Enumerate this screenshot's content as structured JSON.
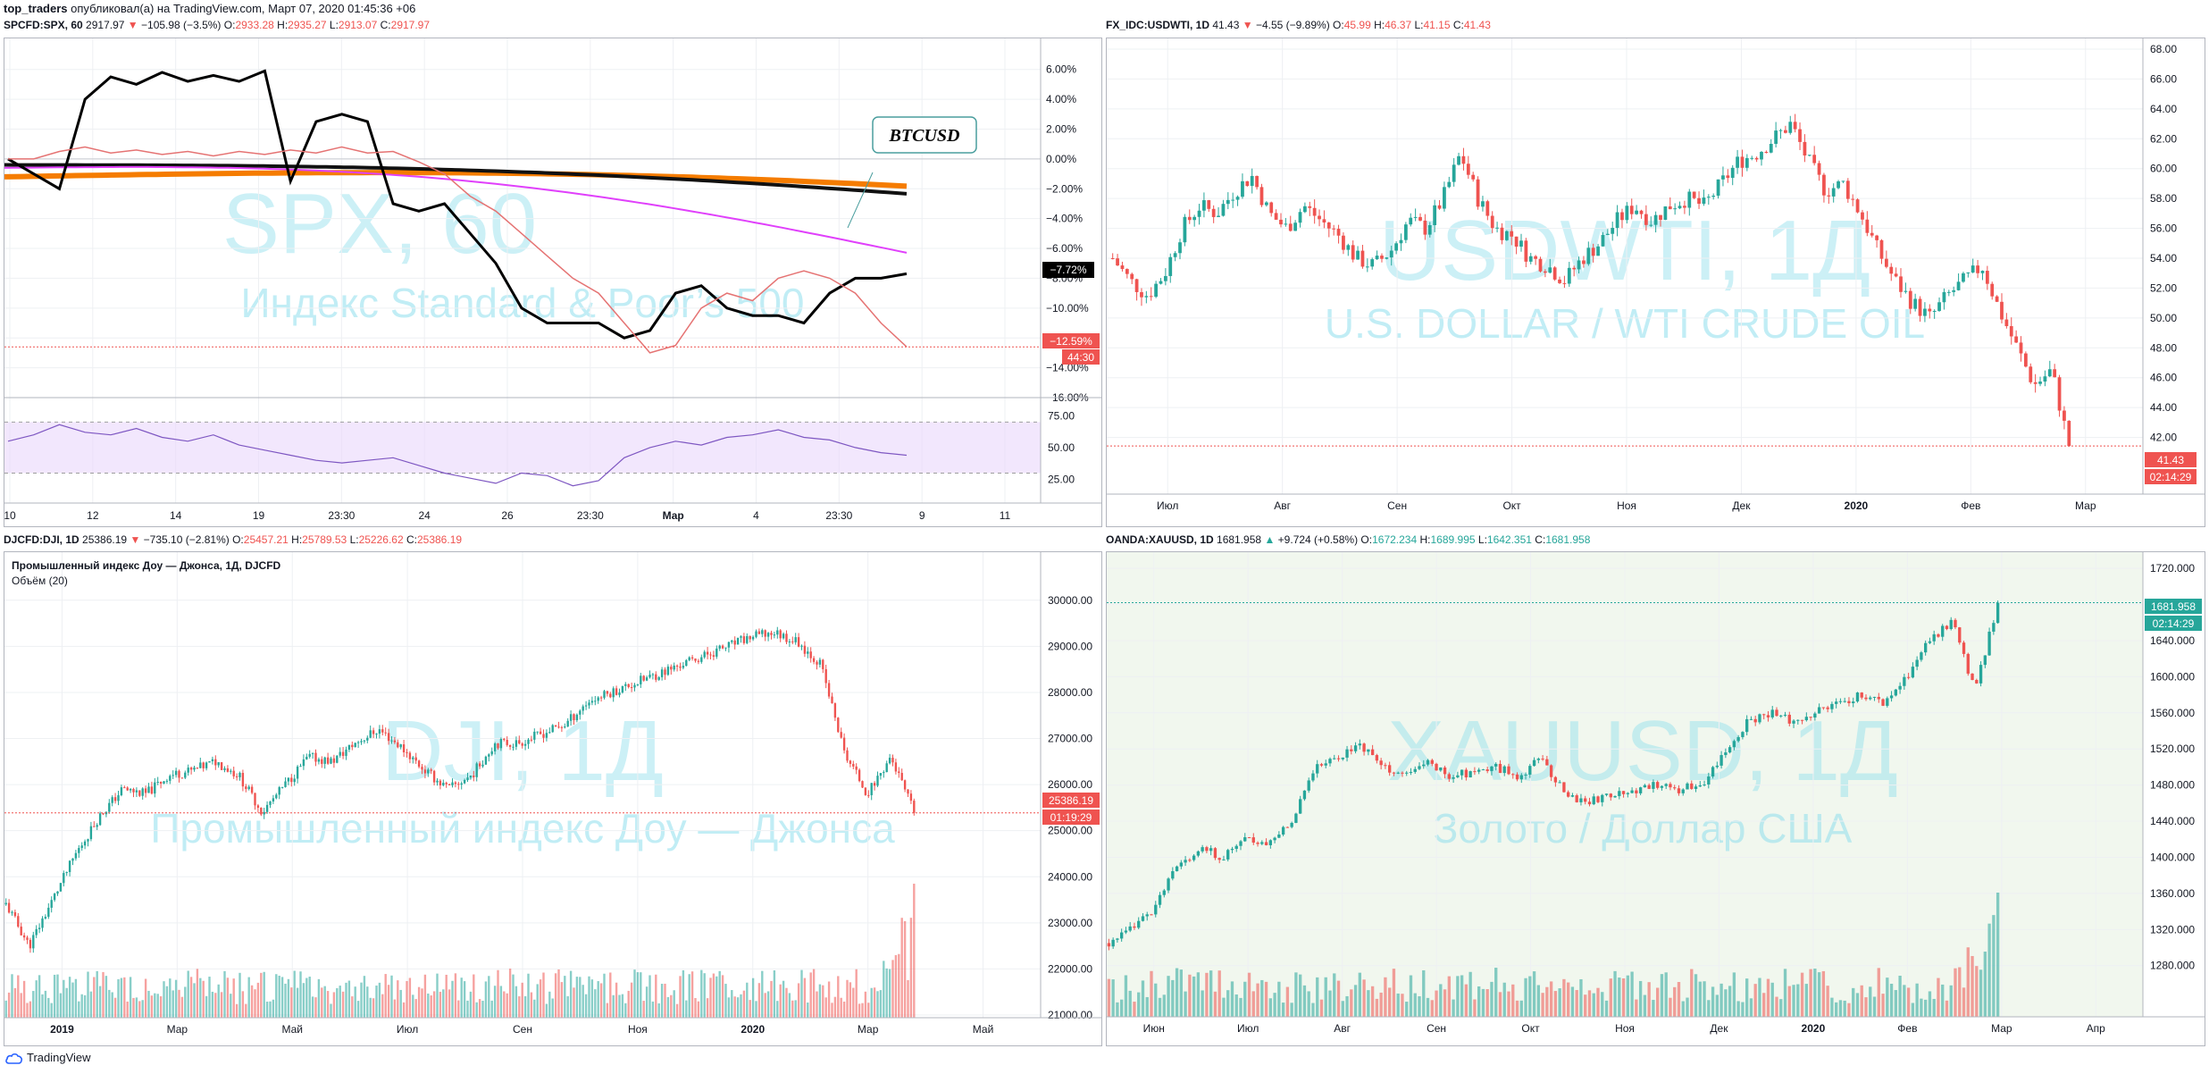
{
  "header": {
    "user": "top_traders",
    "published": "опубликовал(а) на TradingView.com, Март 07, 2020 01:45:36 +06"
  },
  "footer": {
    "brand": "TradingView"
  },
  "panels": {
    "spx": {
      "symbol": "SPCFD:SPX, 60",
      "last": "2917.97",
      "change": "−105.98 (−3.5%)",
      "o": "2933.28",
      "h": "2935.27",
      "l": "2913.07",
      "c": "2917.97",
      "watermark1": "SPX, 60",
      "watermark2": "Индекс Standard & Poor’s 500",
      "callout": "BTCUSD",
      "badge_btc": "−7.72%",
      "badge_last": "−12.59%",
      "badge_timer": "44:30"
    },
    "usdwti": {
      "symbol": "FX_IDC:USDWTI, 1D",
      "last": "41.43",
      "change": "−4.55 (−9.89%)",
      "o": "45.99",
      "h": "46.37",
      "l": "41.15",
      "c": "41.43",
      "watermark1": "USDWTI, 1Д",
      "watermark2": "U.S. DOLLAR / WTI CRUDE OIL",
      "badge_last": "41.43",
      "badge_timer": "02:14:29"
    },
    "dji": {
      "symbol": "DJCFD:DJI, 1D",
      "last": "25386.19",
      "change": "−735.10 (−2.81%)",
      "o": "25457.21",
      "h": "25789.53",
      "l": "25226.62",
      "c": "25386.19",
      "legend_title": "Промышленный индекс Доу — Джонса, 1Д, DJCFD",
      "legend_volume": "Объём (20)",
      "watermark1": "DJI, 1Д",
      "watermark2": "Промышленный индекс Доу — Джонса",
      "badge_last": "25386.19",
      "badge_timer": "01:19:29"
    },
    "xauusd": {
      "symbol": "OANDA:XAUUSD, 1D",
      "last": "1681.958",
      "change": "+9.724 (+0.58%)",
      "o": "1672.234",
      "h": "1689.995",
      "l": "1642.351",
      "c": "1681.958",
      "watermark1": "XAUUSD, 1Д",
      "watermark2": "Золото / Доллар США",
      "badge_last": "1681.958",
      "badge_timer": "02:14:29"
    }
  },
  "colors": {
    "up": "#26a69a",
    "down": "#ef5350",
    "btc": "#000000",
    "rsi": "#7e57c2",
    "ma_orange": "#f57c00",
    "ma_magenta": "#e040fb",
    "watermark": "#8fdfed"
  },
  "chart_data": [
    {
      "type": "line",
      "title": "SPCFD:SPX, 60",
      "y_axis_unit": "%",
      "ylim": [
        -16,
        7
      ],
      "y_ticks": [
        "6.00%",
        "4.00%",
        "2.00%",
        "0.00%",
        "−2.00%",
        "−4.00%",
        "−6.00%",
        "−8.00%",
        "−10.00%",
        "−12.00%",
        "−14.00%",
        "−16.00%"
      ],
      "x_ticks": [
        "10",
        "12",
        "14",
        "19",
        "23:30",
        "24",
        "26",
        "23:30",
        "Мар",
        "4",
        "23:30",
        "9",
        "11"
      ],
      "series": [
        {
          "name": "BTCUSD",
          "values": [
            0,
            -1,
            -2,
            4,
            5.5,
            5,
            5.8,
            5.2,
            5.6,
            5.2,
            5.9,
            -1.5,
            2.5,
            3.0,
            2.5,
            -3,
            -3.5,
            -3,
            -5,
            -7,
            -10,
            -11,
            -11,
            -11,
            -12,
            -11.5,
            -9,
            -8.5,
            -10,
            -10.5,
            -10.5,
            -11,
            -9,
            -8,
            -8,
            -7.7
          ]
        },
        {
          "name": "SPX",
          "values": [
            0,
            0,
            0.5,
            0.8,
            0.4,
            0.6,
            0.3,
            0.5,
            0.2,
            0.5,
            0.3,
            0.6,
            0.4,
            0.8,
            0.4,
            0.5,
            -0.2,
            -1,
            -2.5,
            -3.5,
            -5,
            -6.5,
            -8,
            -9,
            -11,
            -13,
            -12.5,
            -10,
            -9,
            -9.5,
            -8,
            -7.5,
            -8,
            -9,
            -11,
            -12.6
          ]
        }
      ],
      "rsi": {
        "ylim": [
          10,
          85
        ],
        "y_ticks": [
          "75.00",
          "50.00",
          "25.00"
        ],
        "values": [
          55,
          60,
          68,
          62,
          60,
          65,
          58,
          55,
          60,
          52,
          48,
          44,
          40,
          38,
          40,
          42,
          36,
          30,
          26,
          22,
          30,
          28,
          20,
          24,
          42,
          50,
          55,
          52,
          58,
          60,
          64,
          58,
          56,
          50,
          46,
          44
        ]
      }
    },
    {
      "type": "candlestick",
      "title": "FX_IDC:USDWTI, 1D",
      "ylim": [
        40,
        68
      ],
      "y_ticks": [
        "68.00",
        "66.00",
        "64.00",
        "62.00",
        "60.00",
        "58.00",
        "56.00",
        "54.00",
        "52.00",
        "50.00",
        "48.00",
        "46.00",
        "44.00",
        "42.00"
      ],
      "x_ticks": [
        "Июл",
        "Авг",
        "Сен",
        "Окт",
        "Ноя",
        "Дек",
        "2020",
        "Фев",
        "Мар"
      ],
      "closes": [
        54.0,
        52.5,
        51.5,
        53.0,
        56.0,
        57.5,
        57.0,
        58.5,
        59.5,
        57.0,
        56.0,
        57.5,
        56.5,
        55.5,
        54.0,
        53.5,
        54.5,
        56.5,
        56.0,
        58.0,
        61.0,
        58.0,
        56.0,
        55.5,
        54.0,
        53.5,
        52.5,
        54.0,
        55.0,
        56.5,
        57.5,
        56.5,
        57.5,
        58.0,
        57.5,
        59.0,
        60.5,
        61.0,
        62.0,
        63.0,
        60.5,
        58.5,
        59.0,
        57.0,
        54.5,
        52.5,
        51.0,
        50.0,
        51.5,
        52.5,
        53.5,
        50.5,
        48.0,
        45.5,
        46.5,
        41.43
      ]
    },
    {
      "type": "candlestick",
      "title": "DJCFD:DJI, 1D",
      "ylim": [
        21000,
        30500
      ],
      "y_ticks": [
        "30000.00",
        "29000.00",
        "28000.00",
        "27000.00",
        "26000.00",
        "25000.00",
        "24000.00",
        "23000.00",
        "22000.00",
        "21000.00"
      ],
      "x_ticks": [
        "2019",
        "Мар",
        "Май",
        "Июл",
        "Сен",
        "Ноя",
        "2020",
        "Мар",
        "Май"
      ],
      "closes": [
        23400,
        22500,
        23500,
        24500,
        25300,
        25900,
        25800,
        26200,
        26300,
        26500,
        26200,
        25400,
        26000,
        26600,
        26500,
        26900,
        27200,
        26800,
        26300,
        25900,
        26200,
        26900,
        26900,
        27100,
        27300,
        27800,
        28000,
        28200,
        28400,
        28600,
        28800,
        29000,
        29200,
        29300,
        29100,
        28600,
        26700,
        25800,
        26600,
        25386
      ]
    },
    {
      "type": "candlestick",
      "title": "OANDA:XAUUSD, 1D",
      "ylim": [
        1255,
        1730
      ],
      "y_ticks": [
        "1720.000",
        "1680.000",
        "1640.000",
        "1600.000",
        "1560.000",
        "1520.000",
        "1480.000",
        "1440.000",
        "1400.000",
        "1360.000",
        "1320.000",
        "1280.000"
      ],
      "x_ticks": [
        "Июн",
        "Июл",
        "Авг",
        "Сен",
        "Окт",
        "Ноя",
        "Дек",
        "2020",
        "Фев",
        "Мар",
        "Апр"
      ],
      "closes": [
        1305,
        1320,
        1345,
        1390,
        1410,
        1400,
        1420,
        1415,
        1440,
        1500,
        1510,
        1525,
        1500,
        1490,
        1505,
        1490,
        1495,
        1500,
        1490,
        1510,
        1470,
        1460,
        1470,
        1475,
        1480,
        1475,
        1480,
        1515,
        1550,
        1560,
        1550,
        1560,
        1570,
        1580,
        1570,
        1600,
        1640,
        1660,
        1585,
        1681.958
      ]
    }
  ]
}
